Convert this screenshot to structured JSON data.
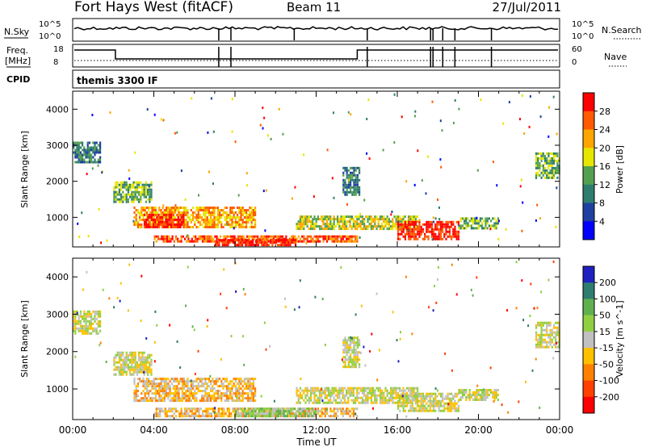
{
  "header": {
    "station": "Fort Hays West (fitACF)",
    "beam": "Beam 11",
    "date": "27/Jul/2011"
  },
  "noise_panel": {
    "left_label": "N.Sky",
    "right_label": "N.Search",
    "ticks_left": [
      "10^5",
      "10^0"
    ],
    "ticks_right": [
      "10^5",
      "10^0"
    ]
  },
  "freq_panel": {
    "left_label": "Freq.",
    "left_unit": "[MHz]",
    "right_label": "Nave",
    "ticks_left": [
      "18",
      "8"
    ],
    "ticks_right": [
      "60",
      "0"
    ]
  },
  "cpid_panel": {
    "label": "CPID",
    "program": "themis 3300 IF"
  },
  "chart_data": [
    {
      "type": "heatmap",
      "panel": "power",
      "xlabel": "Time UT",
      "ylabel": "Slant Range [km]",
      "x_ticks": [
        "00:00",
        "04:00",
        "08:00",
        "12:00",
        "16:00",
        "20:00",
        "00:00"
      ],
      "y_ticks": [
        "1000",
        "2000",
        "3000",
        "4000"
      ],
      "xlim": [
        0,
        24
      ],
      "ylim": [
        180,
        4500
      ],
      "colorbar": {
        "label": "Power [dB]",
        "ticks": [
          "4",
          "8",
          "12",
          "16",
          "20",
          "24",
          "28"
        ],
        "colors": [
          "#0000ff",
          "#1e40a0",
          "#2e7d6e",
          "#55a050",
          "#e6e600",
          "#ffa500",
          "#ff5a00",
          "#ff0000"
        ]
      },
      "regions": [
        {
          "t0": 0.0,
          "t1": 1.4,
          "r0": 2500,
          "r1": 3100,
          "level": 2
        },
        {
          "t0": 2.0,
          "t1": 3.9,
          "r0": 1400,
          "r1": 2000,
          "level": 3
        },
        {
          "t0": 3.0,
          "t1": 9.0,
          "r0": 700,
          "r1": 1300,
          "level": 5
        },
        {
          "t0": 3.5,
          "t1": 5.5,
          "r0": 750,
          "r1": 1100,
          "level": 7
        },
        {
          "t0": 4.0,
          "t1": 14.0,
          "r0": 300,
          "r1": 500,
          "level": 6
        },
        {
          "t0": 7.0,
          "t1": 11.0,
          "r0": 250,
          "r1": 400,
          "level": 7
        },
        {
          "t0": 11.0,
          "t1": 17.0,
          "r0": 650,
          "r1": 1050,
          "level": 4
        },
        {
          "t0": 16.0,
          "t1": 19.0,
          "r0": 400,
          "r1": 900,
          "level": 7
        },
        {
          "t0": 19.0,
          "t1": 21.0,
          "r0": 700,
          "r1": 1000,
          "level": 3
        },
        {
          "t0": 13.3,
          "t1": 14.1,
          "r0": 1600,
          "r1": 2400,
          "level": 2
        },
        {
          "t0": 22.8,
          "t1": 24.0,
          "r0": 2100,
          "r1": 2800,
          "level": 3
        }
      ]
    },
    {
      "type": "heatmap",
      "panel": "velocity",
      "xlabel": "Time UT",
      "ylabel": "Slant Range [km]",
      "x_ticks": [
        "00:00",
        "04:00",
        "08:00",
        "12:00",
        "16:00",
        "20:00",
        "00:00"
      ],
      "y_ticks": [
        "1000",
        "2000",
        "3000",
        "4000"
      ],
      "xlim": [
        0,
        24
      ],
      "ylim": [
        180,
        4500
      ],
      "colorbar": {
        "label": "Velocity [m s^-1]",
        "ticks": [
          "200",
          "100",
          "50",
          "15",
          "-15",
          "-50",
          "-100",
          "-200"
        ],
        "colors": [
          "#2020c0",
          "#2e7d6e",
          "#60b050",
          "#90d040",
          "#c0c0c0",
          "#ffc000",
          "#ff8000",
          "#ff4000",
          "#ff0000"
        ]
      },
      "regions": [
        {
          "t0": 0.0,
          "t1": 1.4,
          "r0": 2500,
          "r1": 3100,
          "level": 4
        },
        {
          "t0": 2.0,
          "t1": 3.9,
          "r0": 1400,
          "r1": 2000,
          "level": 4
        },
        {
          "t0": 3.0,
          "t1": 9.0,
          "r0": 700,
          "r1": 1300,
          "level": 5
        },
        {
          "t0": 4.0,
          "t1": 14.0,
          "r0": 300,
          "r1": 500,
          "level": 5
        },
        {
          "t0": 8.0,
          "t1": 12.0,
          "r0": 250,
          "r1": 500,
          "level": 3
        },
        {
          "t0": 11.0,
          "t1": 17.0,
          "r0": 650,
          "r1": 1050,
          "level": 4
        },
        {
          "t0": 16.0,
          "t1": 19.0,
          "r0": 400,
          "r1": 900,
          "level": 4
        },
        {
          "t0": 19.0,
          "t1": 21.0,
          "r0": 700,
          "r1": 1000,
          "level": 4
        },
        {
          "t0": 13.3,
          "t1": 14.1,
          "r0": 1600,
          "r1": 2400,
          "level": 4
        },
        {
          "t0": 22.8,
          "t1": 24.0,
          "r0": 2100,
          "r1": 2800,
          "level": 4
        }
      ]
    }
  ]
}
